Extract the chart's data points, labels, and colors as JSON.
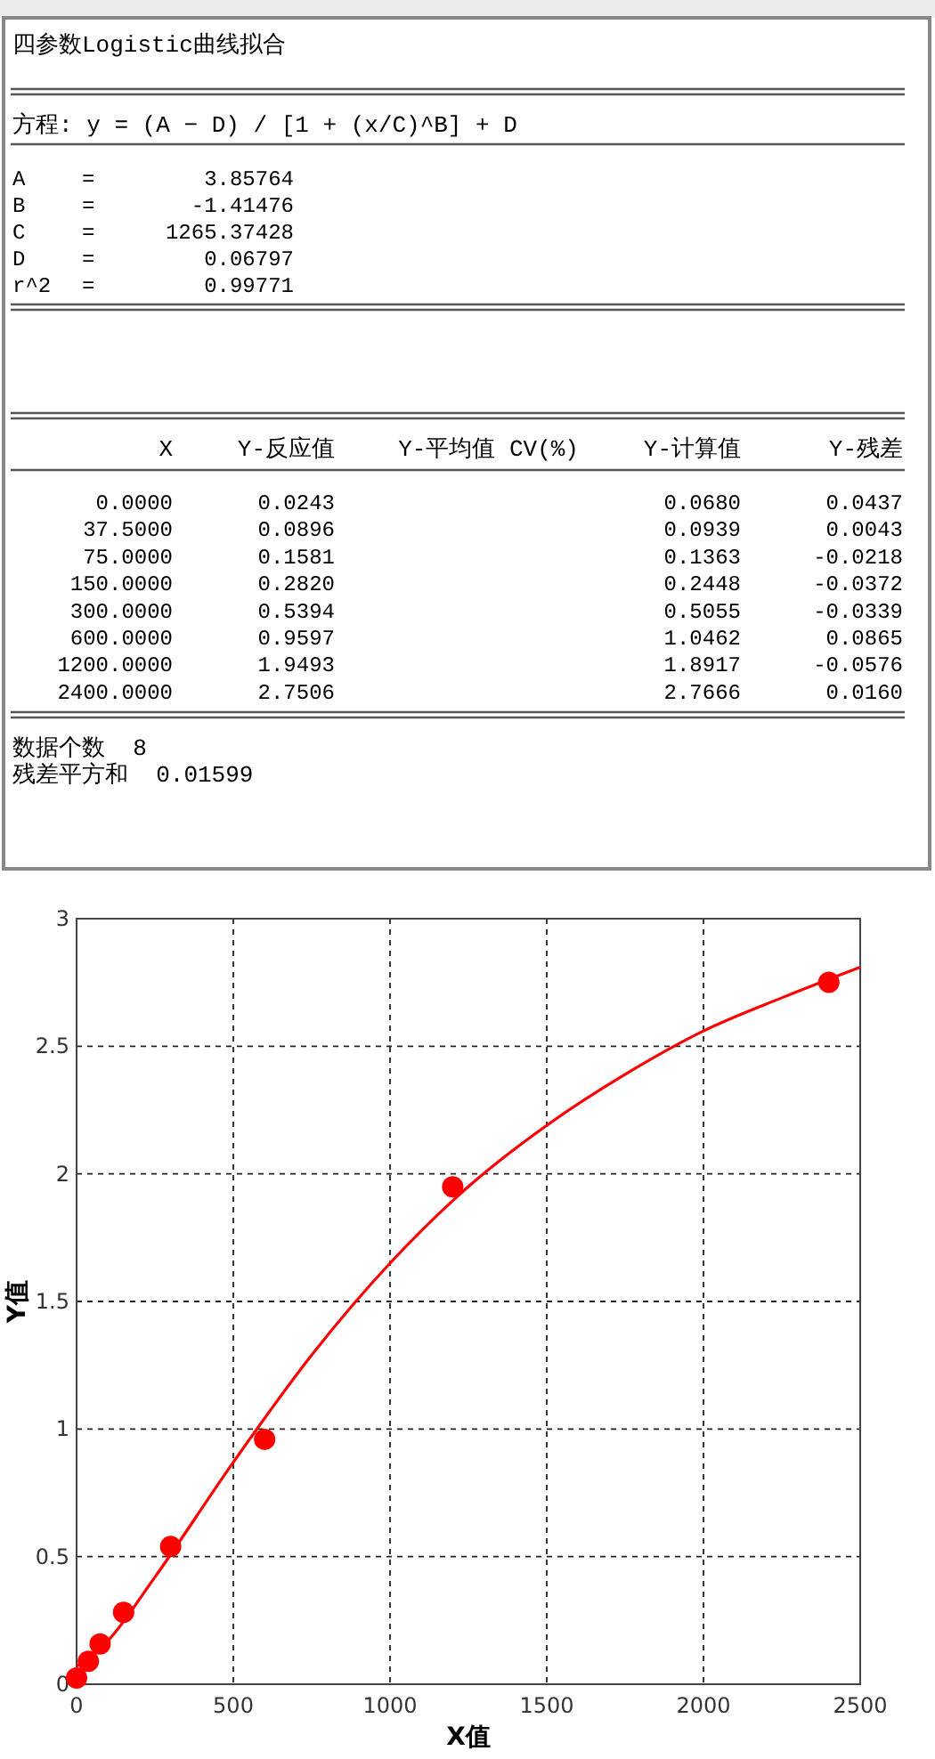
{
  "chart_data": {
    "type": "scatter",
    "title": "四参数Logistic曲线拟合",
    "xlabel": "X值",
    "ylabel": "Y值",
    "xlim": [
      0,
      2500
    ],
    "ylim": [
      0,
      3
    ],
    "xticks": [
      0,
      500,
      1000,
      1500,
      2000,
      2500
    ],
    "yticks": [
      0,
      0.5,
      1,
      1.5,
      2,
      2.5,
      3
    ],
    "grid": true,
    "marker": "circle",
    "annotations": [
      "方程: y = (A − D) / [1 + (x/C)^B] + D",
      "A = 3.85764",
      "B = -1.41476",
      "C = 1265.37428",
      "D = 0.06797",
      "r^2 = 0.99771",
      "X",
      "Y-反应值",
      "Y-平均值 CV(%)",
      "Y-计算值",
      "Y-残差",
      "0.0000 0.0243 0.0680 0.0437",
      "37.5000 0.0896 0.0939 0.0043",
      "75.0000 0.1581 0.1363 -0.0218",
      "150.0000 0.2820 0.2448 -0.0372",
      "300.0000 0.5394 0.5055 -0.0339",
      "600.0000 0.9597 1.0462 0.0865",
      "1200.0000 1.9493 1.8917 -0.0576",
      "2400.0000 2.7506 2.7666 0.0160",
      "数据个数  8",
      "残差平方和  0.01599"
    ],
    "series": [
      {
        "type": "line",
        "marker": "none",
        "color": "#ff0000",
        "x": [
          0,
          50,
          100,
          250,
          500,
          750,
          1000,
          1250,
          1500,
          1750,
          2000,
          2250,
          2500
        ],
        "values": [
          0.07,
          0.11,
          0.17,
          0.42,
          0.87,
          1.29,
          1.65,
          1.95,
          2.19,
          2.39,
          2.56,
          2.69,
          2.81
        ]
      },
      {
        "color": "#ff0000",
        "x": [
          0,
          37.5,
          75,
          150,
          300,
          600,
          1200,
          2400
        ],
        "values": [
          0.0243,
          0.0896,
          0.1581,
          0.282,
          0.5394,
          0.9597,
          1.9493,
          2.7506
        ]
      }
    ]
  }
}
